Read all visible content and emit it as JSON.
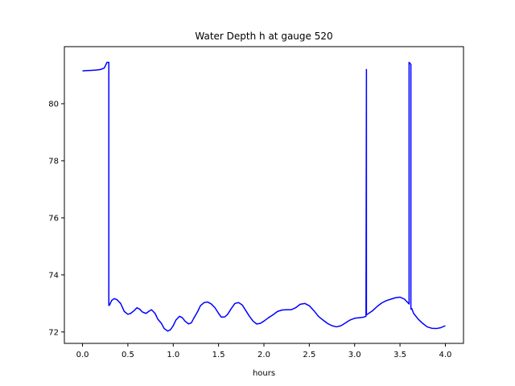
{
  "chart_data": {
    "type": "line",
    "title": "Water Depth h at gauge 520",
    "xlabel": "hours",
    "ylabel": "",
    "xlim": [
      -0.2,
      4.2
    ],
    "ylim": [
      71.6,
      82.0
    ],
    "xticks": [
      0.0,
      0.5,
      1.0,
      1.5,
      2.0,
      2.5,
      3.0,
      3.5,
      4.0
    ],
    "xtick_labels": [
      "0.0",
      "0.5",
      "1.0",
      "1.5",
      "2.0",
      "2.5",
      "3.0",
      "3.5",
      "4.0"
    ],
    "yticks": [
      72,
      74,
      76,
      78,
      80
    ],
    "ytick_labels": [
      "72",
      "74",
      "76",
      "78",
      "80"
    ],
    "grid": false,
    "series": [
      {
        "color": "#0000ff",
        "x": [
          0.0,
          0.05,
          0.1,
          0.15,
          0.2,
          0.24,
          0.27,
          0.29,
          0.29,
          0.3,
          0.32,
          0.35,
          0.38,
          0.42,
          0.46,
          0.5,
          0.53,
          0.57,
          0.6,
          0.63,
          0.66,
          0.7,
          0.73,
          0.76,
          0.8,
          0.83,
          0.87,
          0.9,
          0.94,
          0.97,
          1.0,
          1.03,
          1.07,
          1.1,
          1.13,
          1.17,
          1.2,
          1.23,
          1.27,
          1.3,
          1.34,
          1.38,
          1.42,
          1.46,
          1.5,
          1.53,
          1.57,
          1.6,
          1.64,
          1.68,
          1.72,
          1.76,
          1.8,
          1.84,
          1.88,
          1.92,
          1.96,
          2.0,
          2.05,
          2.1,
          2.15,
          2.2,
          2.25,
          2.3,
          2.35,
          2.4,
          2.45,
          2.5,
          2.55,
          2.6,
          2.65,
          2.7,
          2.75,
          2.8,
          2.85,
          2.9,
          2.95,
          3.0,
          3.05,
          3.1,
          3.125,
          3.13,
          3.13,
          3.14,
          3.2,
          3.25,
          3.3,
          3.35,
          3.4,
          3.45,
          3.5,
          3.55,
          3.6,
          3.6,
          3.62,
          3.62,
          3.63,
          3.65,
          3.7,
          3.75,
          3.8,
          3.85,
          3.9,
          3.95,
          4.0
        ],
        "y": [
          81.15,
          81.16,
          81.17,
          81.18,
          81.2,
          81.25,
          81.45,
          81.45,
          72.93,
          72.95,
          73.1,
          73.17,
          73.13,
          73.0,
          72.72,
          72.62,
          72.65,
          72.75,
          72.85,
          72.8,
          72.7,
          72.65,
          72.72,
          72.78,
          72.65,
          72.45,
          72.3,
          72.12,
          72.03,
          72.08,
          72.22,
          72.42,
          72.55,
          72.5,
          72.38,
          72.28,
          72.32,
          72.5,
          72.72,
          72.92,
          73.03,
          73.05,
          72.98,
          72.85,
          72.65,
          72.52,
          72.53,
          72.62,
          72.82,
          73.0,
          73.03,
          72.95,
          72.75,
          72.55,
          72.38,
          72.28,
          72.3,
          72.38,
          72.5,
          72.6,
          72.72,
          72.77,
          72.78,
          72.78,
          72.85,
          72.97,
          73.0,
          72.92,
          72.75,
          72.55,
          72.42,
          72.3,
          72.22,
          72.18,
          72.22,
          72.32,
          72.42,
          72.48,
          72.5,
          72.52,
          72.55,
          81.2,
          72.6,
          72.62,
          72.75,
          72.9,
          73.02,
          73.1,
          73.15,
          73.2,
          73.22,
          73.15,
          72.98,
          81.45,
          81.38,
          72.8,
          72.82,
          72.65,
          72.45,
          72.3,
          72.18,
          72.13,
          72.12,
          72.15,
          72.22
        ]
      }
    ]
  }
}
